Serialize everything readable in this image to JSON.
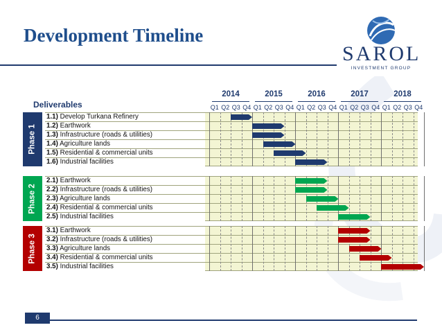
{
  "title": "Development Timeline",
  "logo": {
    "name": "SAROL",
    "tagline": "INVESTMENT GROUP",
    "icon": "globe-swirl-icon"
  },
  "deliverables_header": "Deliverables",
  "years": [
    "2014",
    "2015",
    "2016",
    "2017",
    "2018"
  ],
  "quarters": [
    "Q1",
    "Q2",
    "Q3",
    "Q4",
    "Q1",
    "Q2",
    "Q3",
    "Q4",
    "Q1",
    "Q2",
    "Q3",
    "Q4",
    "Q1",
    "Q2",
    "Q3",
    "Q4",
    "Q1",
    "Q2",
    "Q3",
    "Q4"
  ],
  "colors": {
    "title": "#1f4e8c",
    "phase1": "#1f3a6e",
    "phase2": "#00a651",
    "phase3": "#b30000",
    "row_fill": "#f3f5d3"
  },
  "phases": [
    {
      "label": "Phase 1",
      "color": "#1f3a6e",
      "items": [
        {
          "num": "1.1)",
          "text": "Develop Turkana Refinery",
          "start_q": 2,
          "end_q": 4
        },
        {
          "num": "1.2)",
          "text": "Earthwork",
          "start_q": 4,
          "end_q": 7
        },
        {
          "num": "1.3)",
          "text": "Infrastructure (roads & utilities)",
          "start_q": 4,
          "end_q": 7
        },
        {
          "num": "1.4)",
          "text": "Agriculture lands",
          "start_q": 5,
          "end_q": 8
        },
        {
          "num": "1.5)",
          "text": "Residential & commercial units",
          "start_q": 6,
          "end_q": 9
        },
        {
          "num": "1.6)",
          "text": "Industrial facilities",
          "start_q": 8,
          "end_q": 11
        }
      ]
    },
    {
      "label": "Phase 2",
      "color": "#00a651",
      "items": [
        {
          "num": "2.1)",
          "text": "Earthwork",
          "start_q": 8,
          "end_q": 11
        },
        {
          "num": "2.2)",
          "text": "Infrastructure (roads & utilities)",
          "start_q": 8,
          "end_q": 11
        },
        {
          "num": "2.3)",
          "text": "Agriculture lands",
          "start_q": 9,
          "end_q": 12
        },
        {
          "num": "2.4)",
          "text": "Residential & commercial units",
          "start_q": 10,
          "end_q": 13
        },
        {
          "num": "2.5)",
          "text": "Industrial facilities",
          "start_q": 12,
          "end_q": 15
        }
      ]
    },
    {
      "label": "Phase 3",
      "color": "#b30000",
      "items": [
        {
          "num": "3.1)",
          "text": "Earthwork",
          "start_q": 12,
          "end_q": 15
        },
        {
          "num": "3.2)",
          "text": "Infrastructure (roads & utilities)",
          "start_q": 12,
          "end_q": 15
        },
        {
          "num": "3.3)",
          "text": "Agriculture lands",
          "start_q": 13,
          "end_q": 16
        },
        {
          "num": "3.4)",
          "text": "Residential & commercial units",
          "start_q": 14,
          "end_q": 17
        },
        {
          "num": "3.5)",
          "text": "Industrial facilities",
          "start_q": 16,
          "end_q": 20
        }
      ]
    }
  ],
  "page_number": "6"
}
